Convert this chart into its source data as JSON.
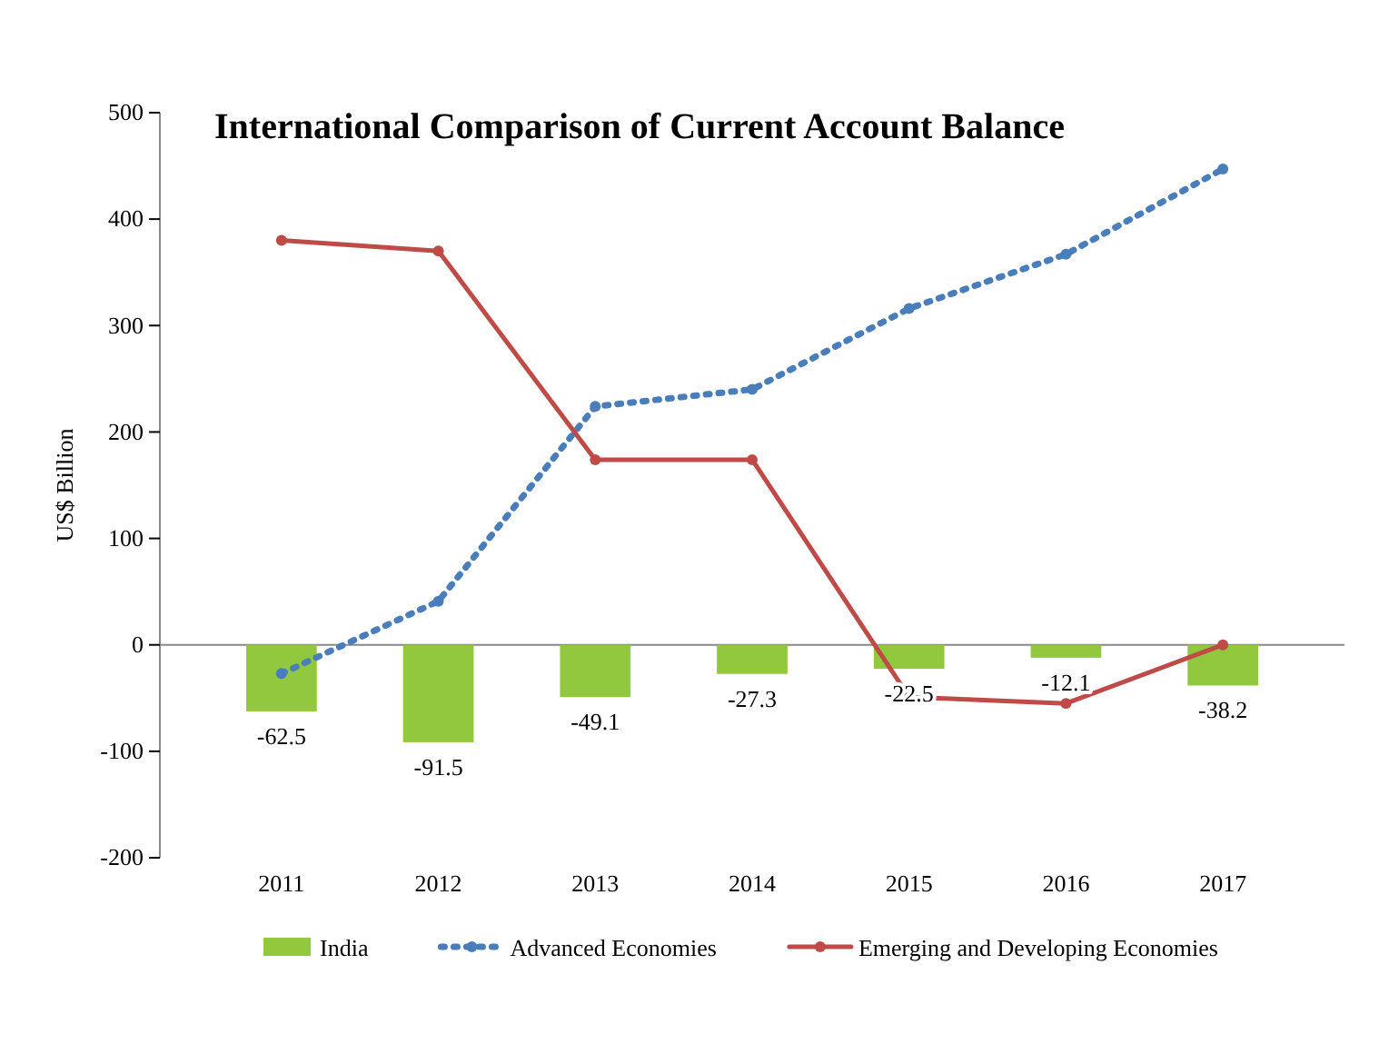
{
  "chart_data": {
    "type": "bar",
    "title": "International Comparison of Current Account Balance",
    "ylabel": "US$ Billion",
    "categories": [
      "2011",
      "2012",
      "2013",
      "2014",
      "2015",
      "2016",
      "2017"
    ],
    "series": [
      {
        "name": "India",
        "color": "#92c83e",
        "values": [
          -62.5,
          -91.5,
          -49.1,
          -27.3,
          -22.5,
          -12.1,
          -38.2
        ],
        "data_labels": true
      },
      {
        "name": "Advanced Economies",
        "type": "line",
        "color": "#4a7ebb",
        "line_style": "dotted",
        "values": [
          -27,
          41,
          224,
          240,
          316,
          367,
          447
        ]
      },
      {
        "name": "Emerging and Developing Economies",
        "type": "line",
        "color": "#be4b48",
        "line_style": "solid",
        "values": [
          380,
          370,
          174,
          174,
          -49,
          -55,
          0
        ]
      }
    ],
    "ylim": [
      -200,
      500
    ],
    "yticks": [
      -200,
      -100,
      0,
      100,
      200,
      300,
      400,
      500
    ],
    "legend": "bottom",
    "marker": "circle"
  }
}
